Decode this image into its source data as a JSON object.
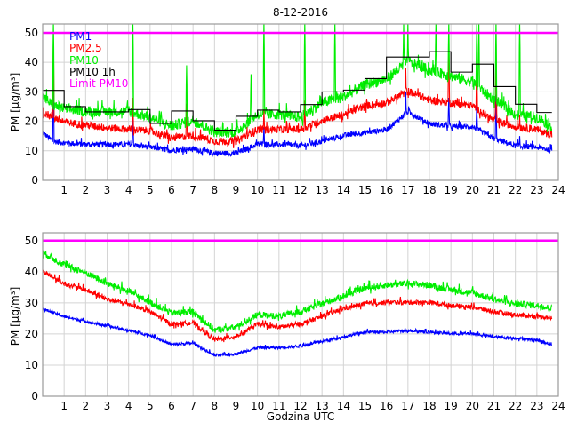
{
  "chart_data": [
    {
      "type": "line",
      "title": "8-12-2016",
      "xlabel": "",
      "ylabel": "PM [µg/m³]",
      "xlim": [
        0,
        24
      ],
      "ylim": [
        0,
        53
      ],
      "xticks": [
        1,
        2,
        3,
        4,
        5,
        6,
        7,
        8,
        9,
        10,
        11,
        12,
        13,
        14,
        15,
        16,
        17,
        18,
        19,
        20,
        21,
        22,
        23,
        24
      ],
      "yticks": [
        0,
        10,
        20,
        30,
        40,
        50
      ],
      "grid": true,
      "legend": {
        "placement": "top-left",
        "entries": [
          "PM1",
          "PM2.5",
          "PM10",
          "PM10 1h",
          "Limit PM10"
        ]
      },
      "series": [
        {
          "name": "PM1",
          "color": "#0000ff",
          "noise": 1.8,
          "base": [
            [
              0,
              16
            ],
            [
              0.5,
              13
            ],
            [
              1,
              12.5
            ],
            [
              2,
              12
            ],
            [
              3,
              12
            ],
            [
              4,
              12
            ],
            [
              5,
              11
            ],
            [
              6,
              10
            ],
            [
              7,
              10.5
            ],
            [
              8,
              9
            ],
            [
              9,
              9
            ],
            [
              10,
              12
            ],
            [
              11,
              12
            ],
            [
              12,
              11.5
            ],
            [
              13,
              13
            ],
            [
              14,
              15
            ],
            [
              15,
              16
            ],
            [
              16,
              17
            ],
            [
              17,
              23
            ],
            [
              18,
              19
            ],
            [
              19,
              18
            ],
            [
              20,
              18
            ],
            [
              21,
              14
            ],
            [
              22,
              11.5
            ],
            [
              23,
              11
            ],
            [
              23.7,
              10
            ]
          ],
          "spikes": [
            [
              0.5,
              32
            ],
            [
              4.2,
              22
            ],
            [
              10.3,
              18
            ],
            [
              16.9,
              30
            ],
            [
              18.9,
              28
            ],
            [
              20.2,
              26
            ],
            [
              21.1,
              29
            ],
            [
              22.2,
              15
            ]
          ]
        },
        {
          "name": "PM2.5",
          "color": "#ff0000",
          "noise": 2.6,
          "base": [
            [
              0,
              23
            ],
            [
              0.5,
              21
            ],
            [
              1,
              19.5
            ],
            [
              2,
              18.5
            ],
            [
              3,
              17.5
            ],
            [
              4,
              17
            ],
            [
              5,
              16.5
            ],
            [
              6,
              14
            ],
            [
              7,
              15
            ],
            [
              8,
              13
            ],
            [
              9,
              13
            ],
            [
              10,
              17
            ],
            [
              11,
              17
            ],
            [
              12,
              17
            ],
            [
              13,
              20
            ],
            [
              14,
              22
            ],
            [
              15,
              25
            ],
            [
              16,
              26
            ],
            [
              17,
              30
            ],
            [
              18,
              27
            ],
            [
              19,
              26
            ],
            [
              20,
              25
            ],
            [
              21,
              20
            ],
            [
              22,
              18
            ],
            [
              23,
              17
            ],
            [
              23.7,
              15
            ]
          ],
          "spikes": [
            [
              0.5,
              47
            ],
            [
              4.2,
              28
            ],
            [
              6.7,
              26
            ],
            [
              10.3,
              24
            ],
            [
              12.2,
              27
            ],
            [
              16.9,
              38
            ],
            [
              18.9,
              45
            ],
            [
              20.2,
              42
            ],
            [
              21.1,
              44
            ],
            [
              22.2,
              22
            ]
          ]
        },
        {
          "name": "PM10",
          "color": "#00ee00",
          "noise": 3.6,
          "base": [
            [
              0,
              28
            ],
            [
              0.5,
              25
            ],
            [
              1,
              24
            ],
            [
              2,
              23
            ],
            [
              3,
              23
            ],
            [
              4,
              23
            ],
            [
              5,
              21
            ],
            [
              6,
              18
            ],
            [
              7,
              20
            ],
            [
              8,
              16
            ],
            [
              9,
              16
            ],
            [
              10,
              22
            ],
            [
              11,
              22
            ],
            [
              12,
              21
            ],
            [
              13,
              26
            ],
            [
              14,
              28
            ],
            [
              15,
              32
            ],
            [
              16,
              34
            ],
            [
              17,
              40
            ],
            [
              18,
              37
            ],
            [
              19,
              35
            ],
            [
              20,
              33
            ],
            [
              21,
              27
            ],
            [
              22,
              22
            ],
            [
              23,
              21
            ],
            [
              23.7,
              18
            ]
          ],
          "spikes": [
            [
              0.5,
              54
            ],
            [
              4.2,
              54
            ],
            [
              6.7,
              39
            ],
            [
              9.7,
              36
            ],
            [
              10.3,
              54
            ],
            [
              12.2,
              54
            ],
            [
              13.6,
              54
            ],
            [
              16.8,
              54
            ],
            [
              17.0,
              54
            ],
            [
              18.3,
              54
            ],
            [
              18.9,
              54
            ],
            [
              20.2,
              54
            ],
            [
              20.3,
              54
            ],
            [
              21.1,
              54
            ],
            [
              22.2,
              54
            ]
          ]
        },
        {
          "name": "PM10 1h",
          "color": "#000000",
          "type": "step",
          "values": [
            30.5,
            25,
            23.2,
            23.2,
            24,
            19.3,
            23.5,
            20.2,
            17,
            21.7,
            23.8,
            23.2,
            25.7,
            30,
            30.6,
            34.5,
            41.8,
            41.8,
            43.6,
            36.7,
            39.4,
            31.8,
            25.8,
            23
          ],
          "end": 23.7
        },
        {
          "name": "Limit PM10",
          "color": "#ff00ff",
          "type": "hline",
          "value": 50
        }
      ]
    },
    {
      "type": "line",
      "title": "",
      "xlabel": "Godzina UTC",
      "ylabel": "PM [µg/m³]",
      "xlim": [
        0,
        24
      ],
      "ylim": [
        0,
        52.5
      ],
      "xticks": [
        1,
        2,
        3,
        4,
        5,
        6,
        7,
        8,
        9,
        10,
        11,
        12,
        13,
        14,
        15,
        16,
        17,
        18,
        19,
        20,
        21,
        22,
        23,
        24
      ],
      "yticks": [
        0,
        10,
        20,
        30,
        40,
        50
      ],
      "grid": true,
      "series": [
        {
          "name": "PM1",
          "color": "#0000ff",
          "noise": 0.9,
          "base": [
            [
              0,
              28
            ],
            [
              1,
              25.5
            ],
            [
              2,
              24
            ],
            [
              3,
              22.5
            ],
            [
              4,
              21
            ],
            [
              5,
              19.5
            ],
            [
              6,
              16.5
            ],
            [
              7,
              17
            ],
            [
              8,
              13
            ],
            [
              9,
              13.5
            ],
            [
              10,
              15.5
            ],
            [
              11,
              15.5
            ],
            [
              12,
              16
            ],
            [
              13,
              17.5
            ],
            [
              14,
              19
            ],
            [
              15,
              20.5
            ],
            [
              16,
              20.5
            ],
            [
              17,
              21
            ],
            [
              18,
              20.5
            ],
            [
              19,
              20
            ],
            [
              20,
              20
            ],
            [
              21,
              19
            ],
            [
              22,
              18.5
            ],
            [
              23,
              18
            ],
            [
              23.7,
              16.5
            ]
          ]
        },
        {
          "name": "PM2.5",
          "color": "#ff0000",
          "noise": 1.5,
          "base": [
            [
              0,
              40
            ],
            [
              1,
              36
            ],
            [
              2,
              34
            ],
            [
              3,
              31
            ],
            [
              4,
              29.5
            ],
            [
              5,
              27
            ],
            [
              6,
              23
            ],
            [
              7,
              23.5
            ],
            [
              8,
              18
            ],
            [
              9,
              19
            ],
            [
              10,
              23
            ],
            [
              11,
              22
            ],
            [
              12,
              23
            ],
            [
              13,
              25.5
            ],
            [
              14,
              28
            ],
            [
              15,
              29.5
            ],
            [
              16,
              30
            ],
            [
              17,
              30
            ],
            [
              18,
              30
            ],
            [
              19,
              29
            ],
            [
              20,
              28.5
            ],
            [
              21,
              27
            ],
            [
              22,
              26
            ],
            [
              23,
              25.5
            ],
            [
              23.7,
              25
            ]
          ]
        },
        {
          "name": "PM10",
          "color": "#00ee00",
          "noise": 2.1,
          "base": [
            [
              0,
              46
            ],
            [
              1,
              42
            ],
            [
              2,
              39.5
            ],
            [
              3,
              36
            ],
            [
              4,
              33.5
            ],
            [
              5,
              30
            ],
            [
              6,
              26.5
            ],
            [
              7,
              27
            ],
            [
              8,
              21
            ],
            [
              9,
              22
            ],
            [
              10,
              26
            ],
            [
              11,
              25.5
            ],
            [
              12,
              27
            ],
            [
              13,
              29.5
            ],
            [
              14,
              32
            ],
            [
              15,
              34.5
            ],
            [
              16,
              35.5
            ],
            [
              17,
              36
            ],
            [
              18,
              35.5
            ],
            [
              19,
              34
            ],
            [
              20,
              33
            ],
            [
              21,
              31
            ],
            [
              22,
              29.5
            ],
            [
              23,
              29
            ],
            [
              23.7,
              28
            ]
          ]
        },
        {
          "name": "Limit PM10",
          "color": "#ff00ff",
          "type": "hline",
          "value": 50
        }
      ]
    }
  ]
}
